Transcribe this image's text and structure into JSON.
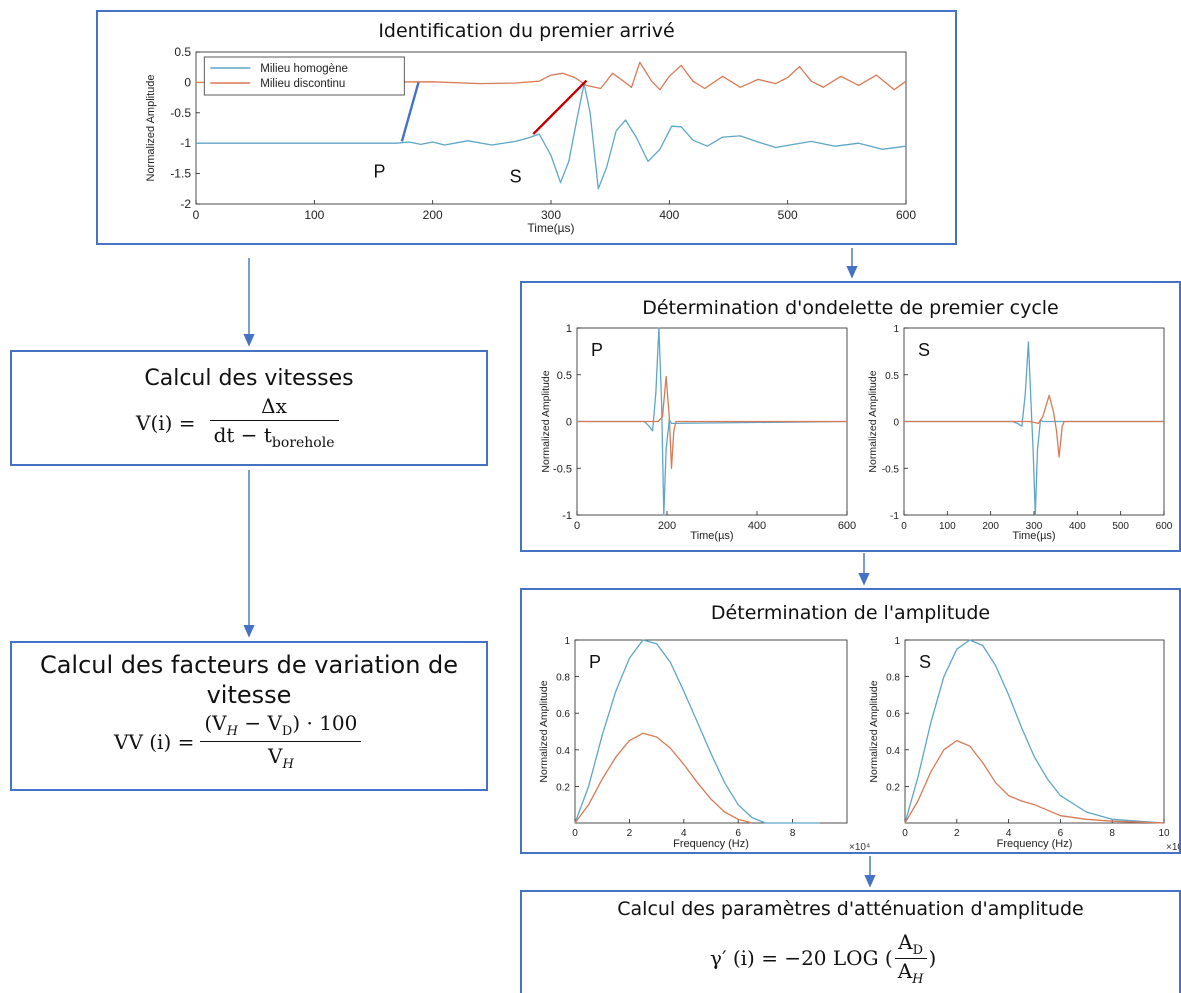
{
  "boxes": {
    "first_arrival": {
      "title": "Identification du premier arrivé",
      "legend": [
        "Milieu homogène",
        "Milieu discontinu"
      ],
      "ylabel": "Normalized Amplitude",
      "xlabel": "Time(µs)",
      "pick_labels": [
        "P",
        "S"
      ]
    },
    "wavelet": {
      "title": "Détermination d'ondelette de premier cycle",
      "ylabel": "Normalized Amplitude",
      "xlabel": "Time(µs)",
      "panel_labels": [
        "P",
        "S"
      ]
    },
    "amplitude": {
      "title": "Détermination de l'amplitude",
      "ylabel": "Normalized Amplitude",
      "xlabel": "Frequency (Hz)",
      "exponent": "×10⁴",
      "panel_labels": [
        "P",
        "S"
      ]
    },
    "attenuation": {
      "title": "Calcul des paramètres d'atténuation d'amplitude",
      "lhs": "γ′ (i) = −20 LOG (",
      "num": "A",
      "num_sub": "D",
      "den": "A",
      "den_sub": "H",
      "rhs": ")"
    },
    "velocity": {
      "title": "Calcul des vitesses",
      "lhs": "V(i) =",
      "num": "Δx",
      "den_main": "dt − t",
      "den_sub": "borehole"
    },
    "variation": {
      "title_line1": "Calcul des facteurs de variation de",
      "title_line2": "vitesse",
      "lhs": "VV (i) =",
      "num_open": "(V",
      "num_sub1": "H",
      "num_mid": "− V",
      "num_sub2": "D",
      "num_close": ") · 100",
      "den": "V",
      "den_sub": "H"
    }
  },
  "colors": {
    "border": "#4472c4",
    "blue_series": "#5ea6c8",
    "orange_series": "#d97a56",
    "pick_blue": "#4472c4",
    "pick_red": "#c00000"
  },
  "chart_data": [
    {
      "type": "line",
      "id": "first-arrival",
      "x_range": [
        0,
        600
      ],
      "ylim": [
        -2,
        0.5
      ],
      "xticks": [
        0,
        100,
        200,
        300,
        400,
        500,
        600
      ],
      "yticks": [
        0.5,
        0,
        -0.5,
        -1,
        -1.5,
        -2
      ],
      "series": [
        {
          "name": "Milieu homogène",
          "color": "#5ea6c8",
          "points": [
            [
              0,
              -1
            ],
            [
              100,
              -1
            ],
            [
              170,
              -1
            ],
            [
              180,
              -0.98
            ],
            [
              190,
              -1.02
            ],
            [
              200,
              -0.98
            ],
            [
              210,
              -1.03
            ],
            [
              230,
              -0.96
            ],
            [
              250,
              -1.03
            ],
            [
              270,
              -0.97
            ],
            [
              280,
              -0.92
            ],
            [
              290,
              -0.85
            ],
            [
              300,
              -1.2
            ],
            [
              308,
              -1.65
            ],
            [
              315,
              -1.3
            ],
            [
              322,
              -0.6
            ],
            [
              328,
              -0.02
            ],
            [
              333,
              -0.5
            ],
            [
              340,
              -1.75
            ],
            [
              347,
              -1.4
            ],
            [
              355,
              -0.8
            ],
            [
              363,
              -0.62
            ],
            [
              372,
              -0.9
            ],
            [
              382,
              -1.3
            ],
            [
              392,
              -1.1
            ],
            [
              402,
              -0.72
            ],
            [
              410,
              -0.73
            ],
            [
              420,
              -0.95
            ],
            [
              432,
              -1.05
            ],
            [
              445,
              -0.9
            ],
            [
              460,
              -0.88
            ],
            [
              475,
              -0.98
            ],
            [
              490,
              -1.07
            ],
            [
              505,
              -1.02
            ],
            [
              520,
              -0.97
            ],
            [
              540,
              -1.05
            ],
            [
              560,
              -1.0
            ],
            [
              580,
              -1.1
            ],
            [
              600,
              -1.05
            ]
          ]
        },
        {
          "name": "Milieu discontinu",
          "color": "#d97a56",
          "points": [
            [
              0,
              0
            ],
            [
              100,
              0
            ],
            [
              200,
              0.01
            ],
            [
              240,
              -0.02
            ],
            [
              270,
              -0.01
            ],
            [
              290,
              0.02
            ],
            [
              300,
              0.12
            ],
            [
              310,
              0.15
            ],
            [
              320,
              0.08
            ],
            [
              330,
              -0.05
            ],
            [
              342,
              -0.1
            ],
            [
              352,
              0.15
            ],
            [
              360,
              0.04
            ],
            [
              368,
              -0.08
            ],
            [
              375,
              0.33
            ],
            [
              385,
              0.02
            ],
            [
              392,
              -0.12
            ],
            [
              400,
              0.1
            ],
            [
              410,
              0.28
            ],
            [
              420,
              0.02
            ],
            [
              430,
              -0.1
            ],
            [
              445,
              0.1
            ],
            [
              460,
              -0.08
            ],
            [
              475,
              0.05
            ],
            [
              490,
              -0.02
            ],
            [
              500,
              0.08
            ],
            [
              510,
              0.26
            ],
            [
              520,
              0.02
            ],
            [
              530,
              -0.08
            ],
            [
              545,
              0.1
            ],
            [
              560,
              -0.05
            ],
            [
              575,
              0.12
            ],
            [
              590,
              -0.12
            ],
            [
              600,
              0.02
            ]
          ]
        }
      ],
      "picks": [
        {
          "label": "P",
          "from": [
            174,
            -0.97
          ],
          "to": [
            188,
            0.0
          ],
          "color": "#4472c4"
        },
        {
          "label": "S",
          "from": [
            285,
            -0.85
          ],
          "to": [
            330,
            0.03
          ],
          "color": "#c00000"
        }
      ]
    },
    {
      "type": "line",
      "id": "wavelet-p",
      "x_range": [
        0,
        600
      ],
      "ylim": [
        -1,
        1
      ],
      "xticks": [
        0,
        200,
        400,
        600
      ],
      "yticks": [
        1,
        0.5,
        0,
        -0.5,
        -1
      ],
      "series": [
        {
          "name": "",
          "color": "#5ea6c8",
          "points": [
            [
              0,
              0
            ],
            [
              150,
              0
            ],
            [
              160,
              -0.05
            ],
            [
              168,
              -0.1
            ],
            [
              175,
              0.3
            ],
            [
              182,
              1.0
            ],
            [
              188,
              0.2
            ],
            [
              193,
              -1.0
            ],
            [
              198,
              -0.3
            ],
            [
              205,
              0.02
            ],
            [
              210,
              -0.02
            ],
            [
              600,
              0
            ]
          ]
        },
        {
          "name": "",
          "color": "#d97a56",
          "points": [
            [
              0,
              0
            ],
            [
              180,
              0
            ],
            [
              190,
              0.05
            ],
            [
              198,
              0.48
            ],
            [
              205,
              0.05
            ],
            [
              210,
              -0.5
            ],
            [
              215,
              -0.1
            ],
            [
              220,
              0
            ],
            [
              600,
              0
            ]
          ]
        }
      ]
    },
    {
      "type": "line",
      "id": "wavelet-s",
      "x_range": [
        0,
        600
      ],
      "ylim": [
        -1,
        1
      ],
      "xticks": [
        0,
        100,
        200,
        300,
        400,
        500,
        600
      ],
      "yticks": [
        1,
        0.5,
        0,
        -0.5,
        -1
      ],
      "series": [
        {
          "name": "",
          "color": "#5ea6c8",
          "points": [
            [
              0,
              0
            ],
            [
              250,
              0
            ],
            [
              262,
              -0.02
            ],
            [
              272,
              -0.05
            ],
            [
              280,
              0.3
            ],
            [
              287,
              0.85
            ],
            [
              293,
              0.2
            ],
            [
              298,
              -0.3
            ],
            [
              303,
              -1.0
            ],
            [
              308,
              -0.3
            ],
            [
              315,
              0.02
            ],
            [
              320,
              0
            ],
            [
              600,
              0
            ]
          ]
        },
        {
          "name": "",
          "color": "#d97a56",
          "points": [
            [
              0,
              0
            ],
            [
              290,
              0
            ],
            [
              310,
              -0.02
            ],
            [
              320,
              0.05
            ],
            [
              335,
              0.28
            ],
            [
              345,
              0.1
            ],
            [
              352,
              -0.1
            ],
            [
              358,
              -0.38
            ],
            [
              365,
              -0.05
            ],
            [
              370,
              0
            ],
            [
              600,
              0
            ]
          ]
        }
      ]
    },
    {
      "type": "line",
      "id": "amplitude-p",
      "x_range": [
        0,
        10
      ],
      "ylim": [
        0,
        1
      ],
      "xticks": [
        0,
        2,
        4,
        6,
        8
      ],
      "yticks": [
        1,
        0.8,
        0.6,
        0.4,
        0.2
      ],
      "series": [
        {
          "name": "",
          "color": "#5ea6c8",
          "points": [
            [
              0,
              0
            ],
            [
              0.5,
              0.2
            ],
            [
              1,
              0.48
            ],
            [
              1.5,
              0.72
            ],
            [
              2,
              0.9
            ],
            [
              2.5,
              1.0
            ],
            [
              3,
              0.98
            ],
            [
              3.5,
              0.88
            ],
            [
              4,
              0.72
            ],
            [
              4.5,
              0.55
            ],
            [
              5,
              0.38
            ],
            [
              5.5,
              0.22
            ],
            [
              6,
              0.1
            ],
            [
              6.5,
              0.03
            ],
            [
              7,
              0
            ],
            [
              9,
              0
            ]
          ]
        },
        {
          "name": "",
          "color": "#d97a56",
          "points": [
            [
              0,
              0
            ],
            [
              0.5,
              0.1
            ],
            [
              1,
              0.24
            ],
            [
              1.5,
              0.36
            ],
            [
              2,
              0.45
            ],
            [
              2.5,
              0.49
            ],
            [
              3,
              0.47
            ],
            [
              3.5,
              0.41
            ],
            [
              4,
              0.32
            ],
            [
              4.5,
              0.22
            ],
            [
              5,
              0.13
            ],
            [
              5.5,
              0.06
            ],
            [
              6,
              0.02
            ],
            [
              6.5,
              0
            ]
          ]
        }
      ]
    },
    {
      "type": "line",
      "id": "amplitude-s",
      "x_range": [
        0,
        10
      ],
      "ylim": [
        0,
        1
      ],
      "xticks": [
        0,
        2,
        4,
        6,
        8,
        10
      ],
      "yticks": [
        1,
        0.8,
        0.6,
        0.4,
        0.2
      ],
      "series": [
        {
          "name": "",
          "color": "#5ea6c8",
          "points": [
            [
              0,
              0
            ],
            [
              0.5,
              0.25
            ],
            [
              1,
              0.55
            ],
            [
              1.5,
              0.8
            ],
            [
              2,
              0.95
            ],
            [
              2.5,
              1.0
            ],
            [
              3,
              0.97
            ],
            [
              3.5,
              0.86
            ],
            [
              4,
              0.7
            ],
            [
              4.5,
              0.52
            ],
            [
              5,
              0.36
            ],
            [
              5.5,
              0.24
            ],
            [
              6,
              0.15
            ],
            [
              7,
              0.06
            ],
            [
              8,
              0.02
            ],
            [
              9,
              0.01
            ],
            [
              10,
              0
            ]
          ]
        },
        {
          "name": "",
          "color": "#d97a56",
          "points": [
            [
              0,
              0
            ],
            [
              0.5,
              0.12
            ],
            [
              1,
              0.28
            ],
            [
              1.5,
              0.4
            ],
            [
              2,
              0.45
            ],
            [
              2.5,
              0.42
            ],
            [
              3,
              0.33
            ],
            [
              3.5,
              0.22
            ],
            [
              4,
              0.15
            ],
            [
              4.5,
              0.12
            ],
            [
              5,
              0.1
            ],
            [
              5.5,
              0.07
            ],
            [
              6,
              0.04
            ],
            [
              7,
              0.02
            ],
            [
              8,
              0.01
            ],
            [
              10,
              0
            ]
          ]
        }
      ]
    }
  ]
}
